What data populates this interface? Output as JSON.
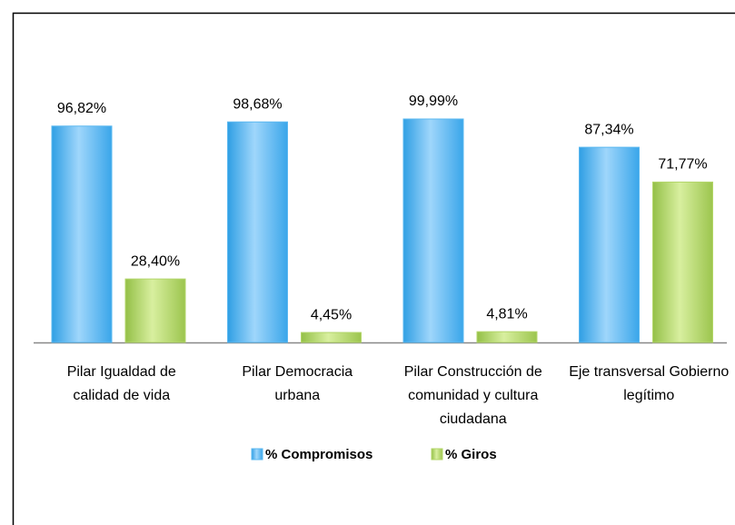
{
  "chart_data": {
    "type": "bar",
    "categories": [
      "Pilar Igualdad de calidad de vida",
      "Pilar Democracia urbana",
      "Pilar Construcción de comunidad y cultura ciudadana",
      "Eje transversal Gobierno legítimo"
    ],
    "series": [
      {
        "name": "% Compromisos",
        "color": "#5bb8f0",
        "values": [
          96.82,
          98.68,
          99.99,
          87.34
        ],
        "value_labels": [
          "96,82%",
          "98,68%",
          "99,99%",
          "87,34%"
        ]
      },
      {
        "name": "% Giros",
        "color": "#b3d66a",
        "values": [
          28.4,
          4.45,
          4.81,
          71.77
        ],
        "value_labels": [
          "28,40%",
          "4,45%",
          "4,81%",
          "71,77%"
        ]
      }
    ],
    "legend": "bottom"
  }
}
